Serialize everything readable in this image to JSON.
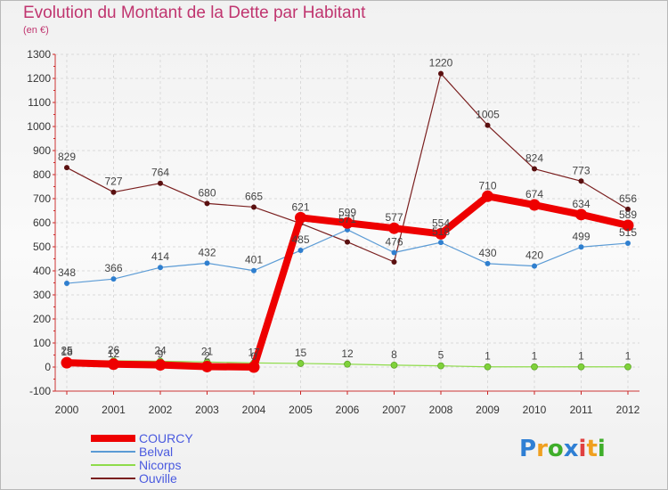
{
  "header": {
    "title": "Evolution du Montant de la Dette par Habitant",
    "subtitle": "(en €)"
  },
  "logo": {
    "text": "Proxiti",
    "letters": [
      "P",
      "r",
      "o",
      "x",
      "i",
      "t",
      "i"
    ],
    "colors": [
      "#2f7fd4",
      "#f0a020",
      "#3fae2a",
      "#2f7fd4",
      "#e04040",
      "#f0a020",
      "#3fae2a"
    ]
  },
  "chart_data": {
    "type": "line",
    "title": "Evolution du Montant de la Dette par Habitant",
    "subtitle": "(en €)",
    "x": [
      "2000",
      "2001",
      "2002",
      "2003",
      "2004",
      "2005",
      "2006",
      "2007",
      "2008",
      "2009",
      "2010",
      "2011",
      "2012"
    ],
    "ylim": [
      -100,
      1300
    ],
    "yticks": [
      -100,
      0,
      100,
      200,
      300,
      400,
      500,
      600,
      700,
      800,
      900,
      1000,
      1100,
      1200,
      1300
    ],
    "grid": true,
    "legend_position": "bottom-left",
    "series": [
      {
        "name": "Ouville",
        "color": "#7a1f1f",
        "width": 1.2,
        "marker": 3,
        "values": [
          829,
          727,
          764,
          680,
          665,
          597,
          520,
          437,
          1220,
          1005,
          824,
          773,
          656
        ],
        "labels": [
          "829",
          "727",
          "764",
          "680",
          "665",
          "",
          null,
          "",
          "1220",
          "1005",
          "824",
          "773",
          "656"
        ]
      },
      {
        "name": "Belval",
        "color": "#5b9bd5",
        "width": 1.2,
        "marker": 3,
        "values": [
          348,
          366,
          414,
          432,
          401,
          485,
          571,
          476,
          518,
          430,
          420,
          499,
          515
        ],
        "labels": [
          "348",
          "366",
          "414",
          "432",
          "401",
          "485",
          "571",
          "476",
          "518",
          "430",
          "420",
          "499",
          "515"
        ]
      },
      {
        "name": "Nicorps",
        "color": "#8edb4a",
        "width": 1.2,
        "marker": 3.5,
        "values": [
          25,
          26,
          24,
          21,
          17,
          15,
          12,
          8,
          5,
          1,
          1,
          1,
          1
        ],
        "labels": [
          "25",
          "26",
          "24",
          "21",
          "17",
          "15",
          "12",
          "8",
          "5",
          "1",
          "1",
          "1",
          "1"
        ]
      },
      {
        "name": "COURCY",
        "color": "#ee0000",
        "width": 8,
        "marker": 6.5,
        "values": [
          18,
          12,
          9,
          2,
          0,
          621,
          599,
          577,
          554,
          710,
          674,
          634,
          589
        ],
        "labels": [
          "18",
          "12",
          "9",
          "2",
          "0",
          "621",
          "599",
          "577",
          "554",
          "710",
          "674",
          "634",
          "589"
        ]
      }
    ]
  }
}
